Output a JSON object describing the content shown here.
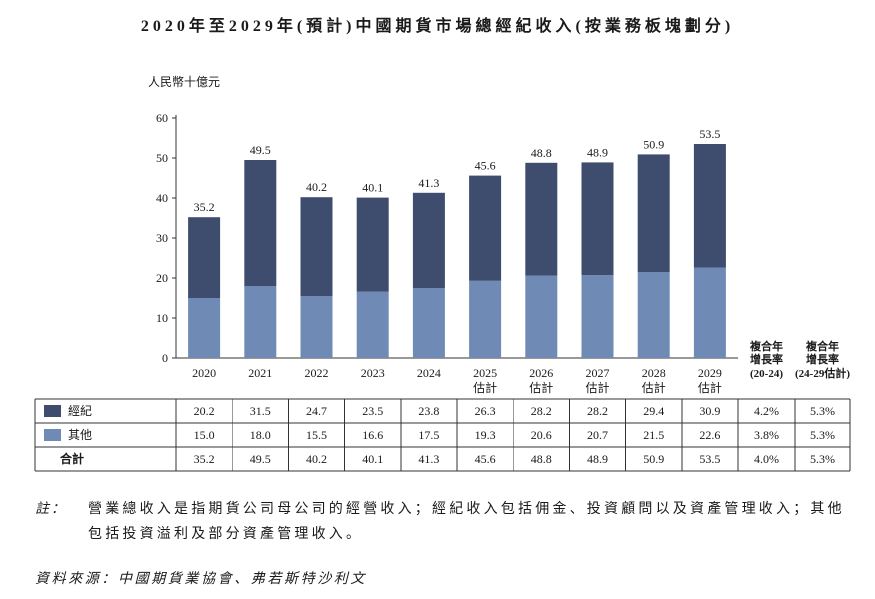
{
  "chart_data": {
    "type": "bar",
    "stacked": true,
    "title": "2020年至2029年(預計)中國期貨市場總經紀收入(按業務板塊劃分)",
    "xlabel": "",
    "ylabel": "人民幣十億元",
    "ylim": [
      0,
      60
    ],
    "yticks": [
      0,
      10,
      20,
      30,
      40,
      50,
      60
    ],
    "grid": false,
    "legend": "bottom-left",
    "categories": [
      "2020",
      "2021",
      "2022",
      "2023",
      "2024",
      "2025",
      "2026",
      "2027",
      "2028",
      "2029"
    ],
    "category_sublabels": [
      "",
      "",
      "",
      "",
      "",
      "估計",
      "估計",
      "估計",
      "估計",
      "估計"
    ],
    "series": [
      {
        "name": "經紀",
        "color": "#3e4d6d",
        "values": [
          20.2,
          31.5,
          24.7,
          23.5,
          23.8,
          26.3,
          28.2,
          28.2,
          29.4,
          30.9
        ],
        "cagr": [
          "4.2%",
          "5.3%"
        ]
      },
      {
        "name": "其他",
        "color": "#6f8ab5",
        "values": [
          15.0,
          18.0,
          15.5,
          16.6,
          17.5,
          19.3,
          20.6,
          20.7,
          21.5,
          22.6
        ],
        "cagr": [
          "3.8%",
          "5.3%"
        ]
      }
    ],
    "totals": {
      "name": "合計",
      "values": [
        35.2,
        49.5,
        40.2,
        40.1,
        41.3,
        45.6,
        48.8,
        48.9,
        50.9,
        53.5
      ],
      "cagr": [
        "4.0%",
        "5.3%"
      ]
    },
    "cagr_headers": [
      [
        "複合年",
        "增長率",
        "(20-24)"
      ],
      [
        "複合年",
        "增長率",
        "(24-29估計)"
      ]
    ]
  },
  "note": {
    "label": "註：",
    "lines": [
      "營業總收入是指期貨公司母公司的經營收入；經紀收入包括佣金、投資顧問以及資產管理收入；其他",
      "包括投資溢利及部分資產管理收入。"
    ]
  },
  "source": "資料來源：中國期貨業協會、弗若斯特沙利文"
}
